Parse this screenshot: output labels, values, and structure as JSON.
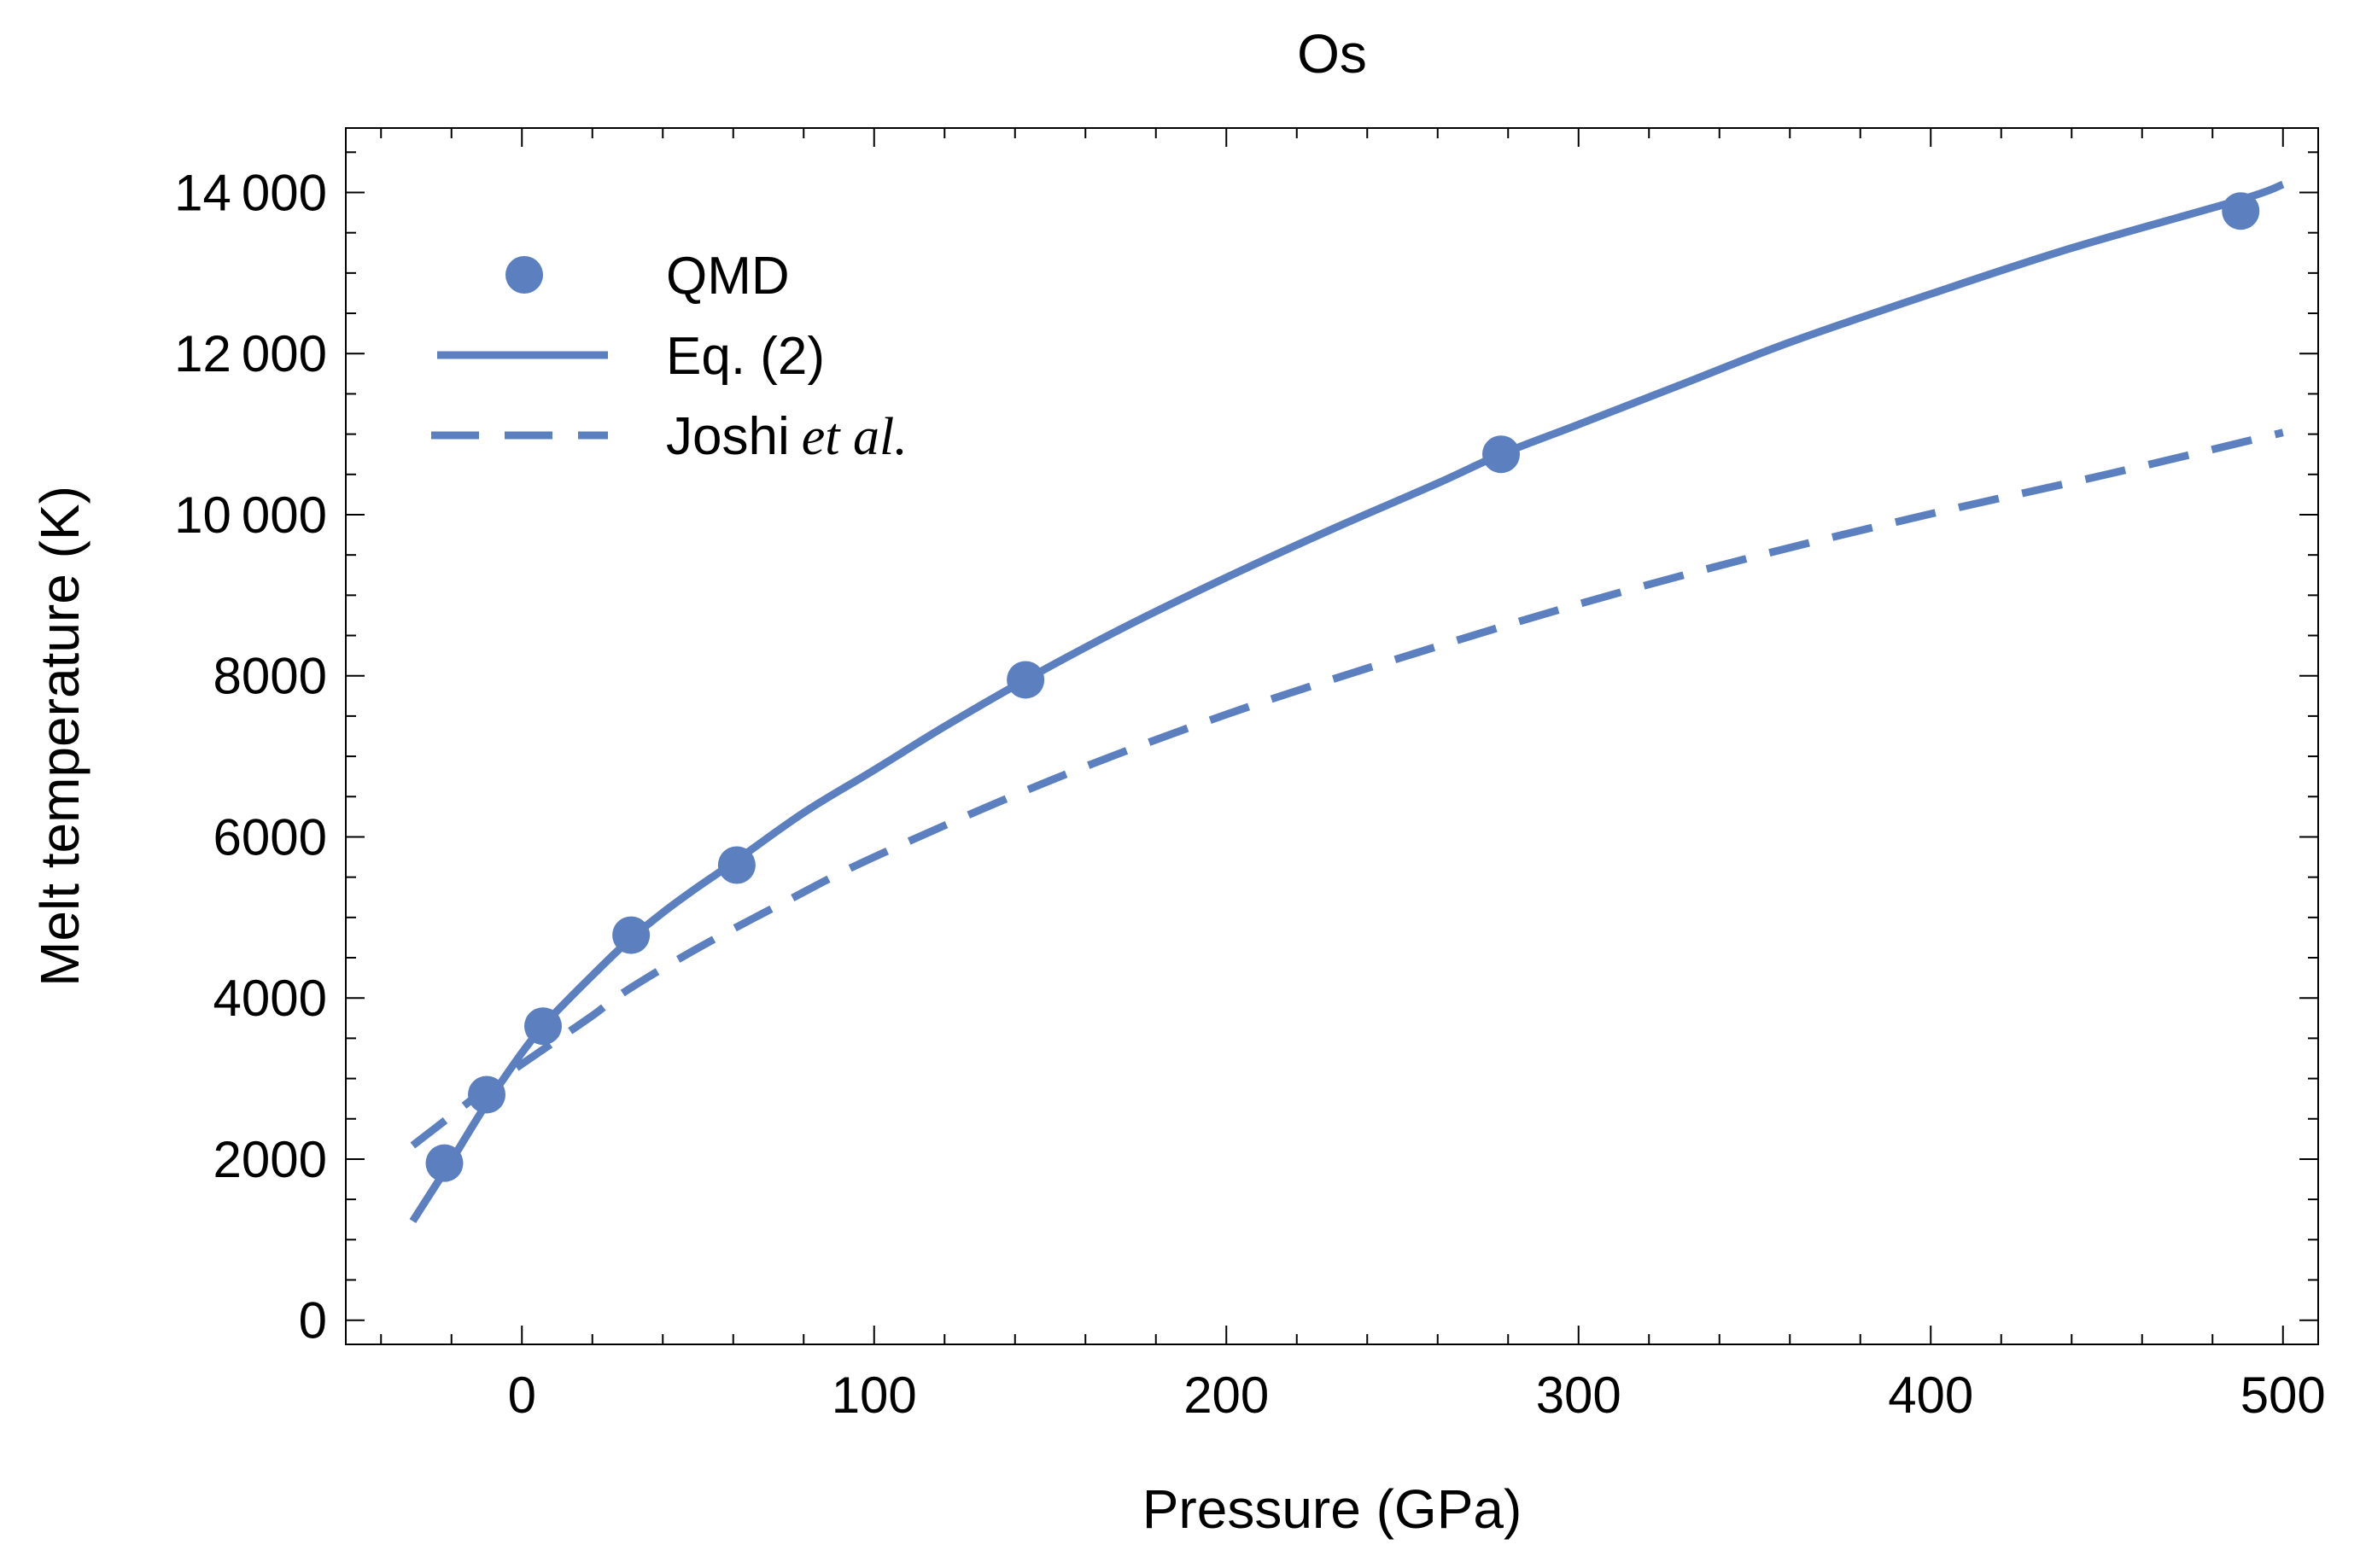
{
  "chart_data": {
    "type": "line",
    "title": "Os",
    "xlabel": "Pressure (GPa)",
    "ylabel": "Melt temperature (K)",
    "xlim": [
      -50,
      510
    ],
    "ylim": [
      -300,
      14800
    ],
    "x_ticks": [
      0,
      100,
      200,
      300,
      400,
      500
    ],
    "x_tick_labels": [
      "0",
      "100",
      "200",
      "300",
      "400",
      "500"
    ],
    "x_minor_step": 20,
    "y_ticks": [
      0,
      2000,
      4000,
      6000,
      8000,
      10000,
      12000,
      14000
    ],
    "y_tick_labels": [
      "0",
      "2000",
      "4000",
      "6000",
      "8000",
      "10 000",
      "12 000",
      "14 000"
    ],
    "y_minor_step": 500,
    "grid": false,
    "legend_position": "top-left",
    "color": "#5b7fbf",
    "legend": {
      "qmd": "QMD",
      "eq2": "Eq. (2)",
      "joshi_name": "Joshi",
      "joshi_etal": "et al.",
      "joshi_period": "."
    },
    "series": [
      {
        "name": "QMD",
        "kind": "points",
        "x": [
          -22,
          -10,
          6,
          31,
          61,
          143,
          278,
          488
        ],
        "y": [
          1950,
          2800,
          3650,
          4780,
          5650,
          7950,
          10750,
          13770
        ]
      },
      {
        "name": "Eq. (2)",
        "kind": "solid",
        "x": [
          -31,
          -25,
          -20,
          -15,
          -10,
          -5,
          0,
          5,
          10,
          20,
          30,
          40,
          50,
          60,
          80,
          100,
          120,
          143,
          170,
          200,
          230,
          260,
          278,
          300,
          330,
          360,
          400,
          440,
          488,
          500
        ],
        "y": [
          1230,
          1640,
          1980,
          2340,
          2690,
          3010,
          3320,
          3600,
          3840,
          4280,
          4700,
          5060,
          5380,
          5680,
          6300,
          6830,
          7370,
          7950,
          8580,
          9220,
          9820,
          10390,
          10750,
          11120,
          11630,
          12140,
          12740,
          13310,
          13910,
          14100
        ]
      },
      {
        "name": "Joshi et al.",
        "kind": "dashed",
        "x": [
          -31,
          -20,
          -10,
          0,
          10,
          20,
          30,
          50,
          75,
          100,
          150,
          200,
          250,
          300,
          350,
          400,
          450,
          500
        ],
        "y": [
          2170,
          2540,
          2880,
          3180,
          3480,
          3780,
          4100,
          4620,
          5200,
          5750,
          6700,
          7520,
          8230,
          8890,
          9480,
          10010,
          10500,
          11020
        ]
      }
    ]
  }
}
